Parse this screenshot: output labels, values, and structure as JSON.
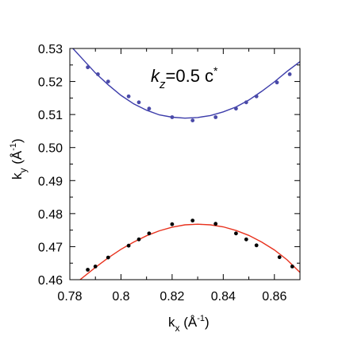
{
  "chart_data": {
    "type": "scatter",
    "xlabel": {
      "base": "k",
      "sub": "x",
      "unit_pre": " (Å",
      "unit_sup": "-1",
      "unit_post": ")"
    },
    "ylabel": {
      "base": "k",
      "sub": "y",
      "unit_pre": " (Å",
      "unit_sup": "-1",
      "unit_post": ")"
    },
    "annotation": {
      "base": "k",
      "sub": "z",
      "rest": "=0.5 c",
      "sup": "*"
    },
    "xlim": [
      0.78,
      0.87
    ],
    "ylim": [
      0.46,
      0.53
    ],
    "x_ticks": [
      "0.78",
      "0.8",
      "0.82",
      "0.84",
      "0.86"
    ],
    "x_tick_values": [
      0.78,
      0.8,
      0.82,
      0.84,
      0.86
    ],
    "y_ticks": [
      "0.46",
      "0.47",
      "0.48",
      "0.49",
      "0.50",
      "0.51",
      "0.52",
      "0.53"
    ],
    "y_tick_values": [
      0.46,
      0.47,
      0.48,
      0.49,
      0.5,
      0.51,
      0.52,
      0.53
    ],
    "grid": false,
    "series": [
      {
        "color": "#4a4aa8",
        "kind": "points",
        "points": [
          [
            0.787,
            0.5243
          ],
          [
            0.791,
            0.5222
          ],
          [
            0.795,
            0.52
          ],
          [
            0.803,
            0.5155
          ],
          [
            0.807,
            0.5137
          ],
          [
            0.811,
            0.5118
          ],
          [
            0.82,
            0.5092
          ],
          [
            0.828,
            0.5082
          ],
          [
            0.837,
            0.5092
          ],
          [
            0.845,
            0.5118
          ],
          [
            0.849,
            0.5137
          ],
          [
            0.853,
            0.5155
          ],
          [
            0.861,
            0.5197
          ],
          [
            0.866,
            0.5222
          ]
        ]
      },
      {
        "color": "#3c3caa",
        "kind": "curve",
        "points": [
          [
            0.78,
            0.531
          ],
          [
            0.785,
            0.5268
          ],
          [
            0.79,
            0.5226
          ],
          [
            0.795,
            0.519
          ],
          [
            0.8,
            0.5158
          ],
          [
            0.805,
            0.5132
          ],
          [
            0.81,
            0.5113
          ],
          [
            0.815,
            0.5099
          ],
          [
            0.82,
            0.5092
          ],
          [
            0.825,
            0.5089
          ],
          [
            0.83,
            0.5091
          ],
          [
            0.835,
            0.5097
          ],
          [
            0.84,
            0.5108
          ],
          [
            0.845,
            0.5123
          ],
          [
            0.85,
            0.5144
          ],
          [
            0.855,
            0.517
          ],
          [
            0.86,
            0.5199
          ],
          [
            0.865,
            0.5231
          ],
          [
            0.87,
            0.526
          ]
        ]
      },
      {
        "color": "#000000",
        "kind": "points",
        "points": [
          [
            0.787,
            0.463
          ],
          [
            0.79,
            0.464
          ],
          [
            0.795,
            0.4667
          ],
          [
            0.803,
            0.4703
          ],
          [
            0.807,
            0.4722
          ],
          [
            0.811,
            0.474
          ],
          [
            0.82,
            0.4768
          ],
          [
            0.828,
            0.4779
          ],
          [
            0.837,
            0.4769
          ],
          [
            0.845,
            0.474
          ],
          [
            0.849,
            0.4722
          ],
          [
            0.853,
            0.4704
          ],
          [
            0.862,
            0.4668
          ],
          [
            0.867,
            0.464
          ]
        ]
      },
      {
        "color": "#e8321e",
        "kind": "curve",
        "points": [
          [
            0.784,
            0.46
          ],
          [
            0.79,
            0.4637
          ],
          [
            0.795,
            0.4666
          ],
          [
            0.8,
            0.4692
          ],
          [
            0.805,
            0.4714
          ],
          [
            0.81,
            0.4733
          ],
          [
            0.815,
            0.4748
          ],
          [
            0.82,
            0.4759
          ],
          [
            0.825,
            0.4766
          ],
          [
            0.83,
            0.4768
          ],
          [
            0.835,
            0.4766
          ],
          [
            0.84,
            0.476
          ],
          [
            0.845,
            0.4749
          ],
          [
            0.85,
            0.4734
          ],
          [
            0.855,
            0.4714
          ],
          [
            0.86,
            0.469
          ],
          [
            0.865,
            0.466
          ],
          [
            0.87,
            0.4622
          ]
        ]
      }
    ]
  }
}
